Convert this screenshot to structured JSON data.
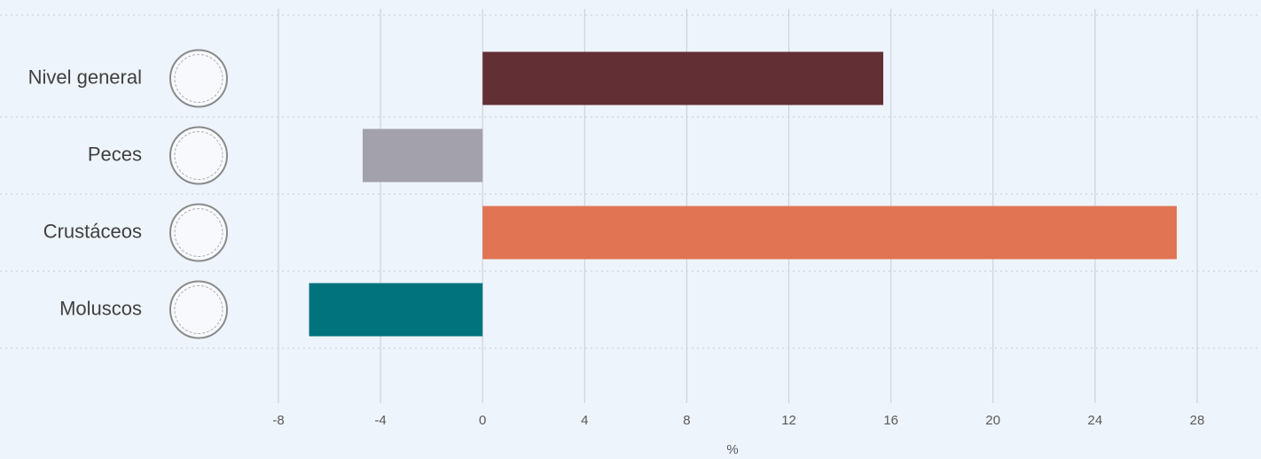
{
  "chart_data": {
    "type": "bar",
    "orientation": "horizontal",
    "categories": [
      "Nivel general",
      "Peces",
      "Crustáceos",
      "Moluscos"
    ],
    "values": [
      15.7,
      -4.7,
      27.2,
      -6.8
    ],
    "colors": [
      "#622f35",
      "#a3a1ab",
      "#e07453",
      "#00737c"
    ],
    "xlabel": "%",
    "xlim": [
      -8,
      28
    ],
    "xticks": [
      -8,
      -4,
      0,
      4,
      8,
      12,
      16,
      20,
      24,
      28
    ],
    "grid": true
  }
}
